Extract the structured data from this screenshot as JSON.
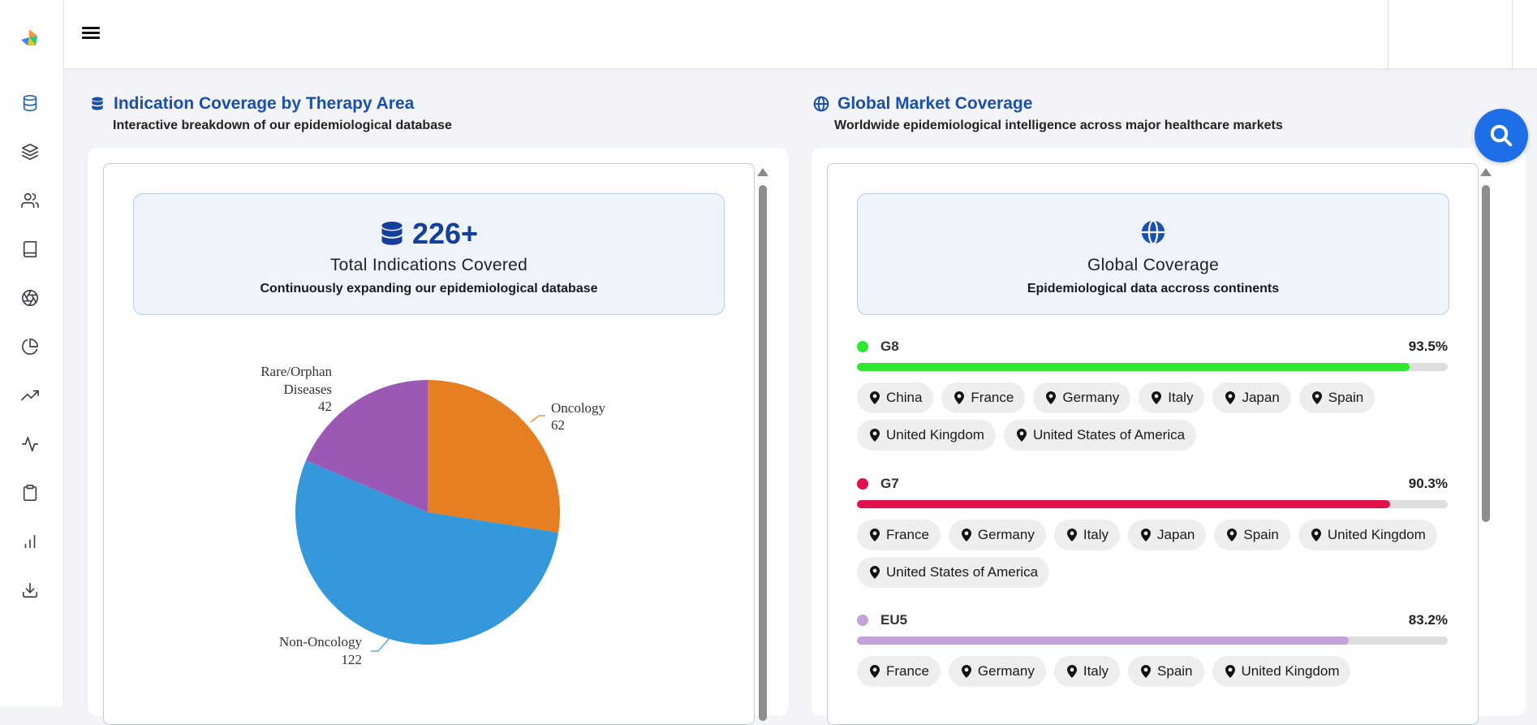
{
  "sidebar": {
    "icons": [
      "database-icon",
      "layers-icon",
      "users-icon",
      "book-icon",
      "aperture-icon",
      "pie-chart-icon",
      "trending-up-icon",
      "activity-icon",
      "clipboard-icon",
      "bar-chart-icon",
      "download-icon"
    ]
  },
  "left_section": {
    "title": "Indication Coverage by Therapy Area",
    "subtitle": "Interactive breakdown of our epidemiological database",
    "summary": {
      "value": "226+",
      "title": "Total Indications Covered",
      "description": "Continuously expanding our epidemiological database"
    }
  },
  "chart_data": {
    "type": "pie",
    "slices": [
      {
        "label": "Oncology",
        "value": 62,
        "color": "#e67e22"
      },
      {
        "label": "Non-Oncology",
        "value": 122,
        "color": "#3498db"
      },
      {
        "label": "Rare/Orphan Diseases",
        "value": 42,
        "color": "#9b59b6"
      }
    ],
    "labels": {
      "oncology_name": "Oncology",
      "oncology_value": "62",
      "nononc_name": "Non-Oncology",
      "nononc_value": "122",
      "rare_line1": "Rare/Orphan",
      "rare_line2": "Diseases",
      "rare_value": "42"
    }
  },
  "right_section": {
    "title": "Global Market Coverage",
    "subtitle": "Worldwide epidemiological intelligence across major healthcare markets",
    "summary": {
      "title": "Global Coverage",
      "description": "Epidemiological data accross continents"
    },
    "regions": [
      {
        "name": "G8",
        "percent": "93.5%",
        "fraction": 0.935,
        "color": "#2ee82e",
        "countries": [
          "China",
          "France",
          "Germany",
          "Italy",
          "Japan",
          "Spain",
          "United Kingdom",
          "United States of America"
        ]
      },
      {
        "name": "G7",
        "percent": "90.3%",
        "fraction": 0.903,
        "color": "#e0114b",
        "countries": [
          "France",
          "Germany",
          "Italy",
          "Japan",
          "Spain",
          "United Kingdom",
          "United States of America"
        ]
      },
      {
        "name": "EU5",
        "percent": "83.2%",
        "fraction": 0.832,
        "color": "#c4a2d8",
        "countries": [
          "France",
          "Germany",
          "Italy",
          "Spain",
          "United Kingdom"
        ]
      }
    ]
  }
}
